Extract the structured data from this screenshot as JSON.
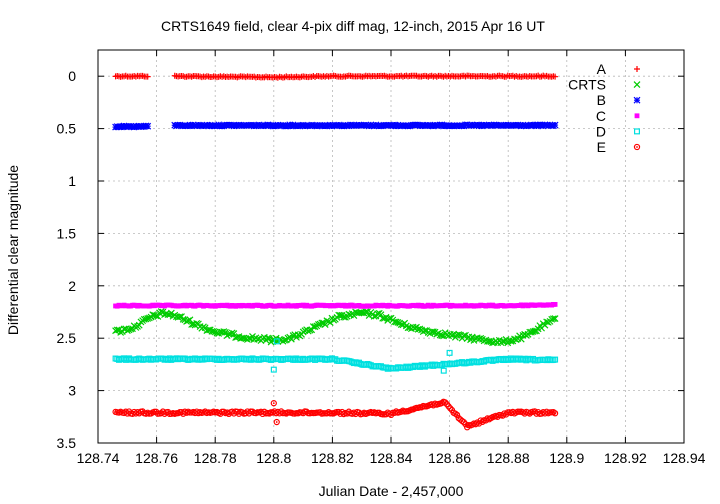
{
  "chart_data": {
    "type": "scatter",
    "title": "CRTS1649 field, clear 4-pix diff mag, 12-inch, 2015 Apr 16 UT",
    "xlabel": "Julian Date - 2,457,000",
    "ylabel": "Differential clear magnitude",
    "xlim": [
      128.74,
      128.94
    ],
    "ylim": [
      3.5,
      -0.25
    ],
    "y_inverted": true,
    "grid": true,
    "legend_position": "top-right",
    "x_ticks": [
      "128.74",
      "128.76",
      "128.78",
      "128.8",
      "128.82",
      "128.84",
      "128.86",
      "128.88",
      "128.9",
      "128.92",
      "128.94"
    ],
    "y_ticks": [
      "0",
      "0.5",
      "1",
      "1.5",
      "2",
      "2.5",
      "3",
      "3.5"
    ],
    "series": [
      {
        "name": "A",
        "marker": "plus",
        "color": "#ff0000",
        "x_range": [
          128.746,
          128.896
        ],
        "gaps": [
          [
            128.757,
            128.766
          ]
        ],
        "points": [
          [
            128.746,
            0.0
          ],
          [
            128.756,
            0.0
          ],
          [
            128.766,
            0.0
          ],
          [
            128.8,
            0.01
          ],
          [
            128.82,
            0.0
          ],
          [
            128.84,
            0.0
          ],
          [
            128.86,
            0.0
          ],
          [
            128.88,
            0.0
          ],
          [
            128.896,
            0.0
          ]
        ]
      },
      {
        "name": "CRTS",
        "marker": "cross",
        "color": "#00cc00",
        "x_range": [
          128.746,
          128.896
        ],
        "points": [
          [
            128.746,
            2.44
          ],
          [
            128.752,
            2.4
          ],
          [
            128.758,
            2.3
          ],
          [
            128.762,
            2.26
          ],
          [
            128.766,
            2.28
          ],
          [
            128.772,
            2.35
          ],
          [
            128.78,
            2.44
          ],
          [
            128.79,
            2.49
          ],
          [
            128.8,
            2.52
          ],
          [
            128.806,
            2.5
          ],
          [
            128.814,
            2.4
          ],
          [
            128.822,
            2.3
          ],
          [
            128.83,
            2.26
          ],
          [
            128.836,
            2.28
          ],
          [
            128.844,
            2.37
          ],
          [
            128.85,
            2.42
          ],
          [
            128.86,
            2.47
          ],
          [
            128.87,
            2.51
          ],
          [
            128.878,
            2.54
          ],
          [
            128.886,
            2.48
          ],
          [
            128.892,
            2.38
          ],
          [
            128.896,
            2.32
          ]
        ]
      },
      {
        "name": "B",
        "marker": "star",
        "color": "#0000ff",
        "x_range": [
          128.746,
          128.896
        ],
        "gaps": [
          [
            128.757,
            128.766
          ]
        ],
        "points": [
          [
            128.746,
            0.48
          ],
          [
            128.756,
            0.48
          ],
          [
            128.766,
            0.47
          ],
          [
            128.8,
            0.47
          ],
          [
            128.82,
            0.47
          ],
          [
            128.84,
            0.47
          ],
          [
            128.86,
            0.47
          ],
          [
            128.88,
            0.47
          ],
          [
            128.896,
            0.47
          ]
        ]
      },
      {
        "name": "C",
        "marker": "filled-square",
        "color": "#ff00ff",
        "x_range": [
          128.746,
          128.896
        ],
        "points": [
          [
            128.746,
            2.19
          ],
          [
            128.76,
            2.19
          ],
          [
            128.78,
            2.19
          ],
          [
            128.8,
            2.19
          ],
          [
            128.82,
            2.19
          ],
          [
            128.84,
            2.19
          ],
          [
            128.86,
            2.19
          ],
          [
            128.88,
            2.19
          ],
          [
            128.896,
            2.18
          ]
        ]
      },
      {
        "name": "D",
        "marker": "open-square",
        "color": "#00e0e0",
        "x_range": [
          128.746,
          128.896
        ],
        "points": [
          [
            128.746,
            2.7
          ],
          [
            128.76,
            2.7
          ],
          [
            128.78,
            2.7
          ],
          [
            128.8,
            2.8
          ],
          [
            128.801,
            2.53
          ],
          [
            128.82,
            2.7
          ],
          [
            128.84,
            2.79
          ],
          [
            128.858,
            2.81
          ],
          [
            128.86,
            2.64
          ],
          [
            128.88,
            2.7
          ],
          [
            128.896,
            2.71
          ]
        ]
      },
      {
        "name": "E",
        "marker": "open-circle",
        "color": "#ff0000",
        "x_range": [
          128.746,
          128.896
        ],
        "points": [
          [
            128.746,
            3.21
          ],
          [
            128.76,
            3.21
          ],
          [
            128.78,
            3.21
          ],
          [
            128.8,
            3.12
          ],
          [
            128.801,
            3.3
          ],
          [
            128.82,
            3.21
          ],
          [
            128.84,
            3.22
          ],
          [
            128.858,
            3.11
          ],
          [
            128.866,
            3.34
          ],
          [
            128.88,
            3.21
          ],
          [
            128.896,
            3.21
          ]
        ]
      }
    ]
  }
}
